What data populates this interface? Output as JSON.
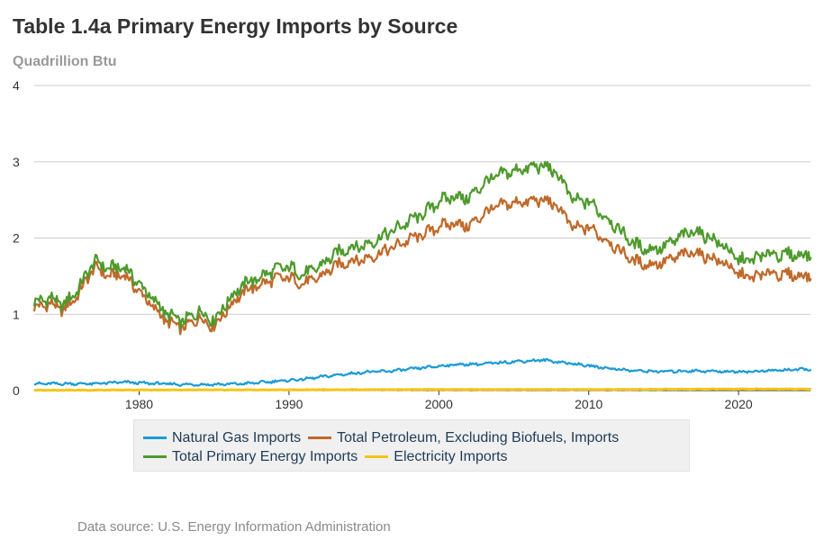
{
  "header": {
    "title": "Table 1.4a Primary Energy Imports by Source",
    "units": "Quadrillion Btu"
  },
  "footer": {
    "source": "Data source: U.S. Energy Information Administration"
  },
  "colors": {
    "natural_gas": "#1a9bd6",
    "petroleum": "#c0692a",
    "total": "#4e9a2c",
    "electricity": "#f5c518",
    "grid": "#cccccc",
    "axis": "#333333"
  },
  "chart_data": {
    "type": "line",
    "title": "Table 1.4a Primary Energy Imports by Source",
    "ylabel": "Quadrillion Btu",
    "xlabel": "",
    "xlim": [
      1973.0,
      2024.8
    ],
    "ylim": [
      0,
      4
    ],
    "x_ticks": [
      1980,
      1990,
      2000,
      2010,
      2020
    ],
    "x_tick_labels": [
      "1980",
      "1990",
      "2000",
      "2010",
      "2020"
    ],
    "y_ticks": [
      0,
      1,
      2,
      3,
      4
    ],
    "y_tick_labels": [
      "0",
      "1",
      "2",
      "3",
      "4"
    ],
    "grid": "horizontal",
    "legend_position": "bottom",
    "frequency": "monthly (values listed are approximate key points of the monthly series)",
    "series": [
      {
        "name": "Total Primary Energy Imports",
        "color": "#4e9a2c",
        "x": [
          1973.0,
          1974.0,
          1975.0,
          1976.0,
          1977.0,
          1978.0,
          1979.0,
          1980.0,
          1981.0,
          1982.0,
          1983.0,
          1984.0,
          1985.0,
          1986.0,
          1987.0,
          1988.0,
          1989.0,
          1990.0,
          1991.0,
          1992.0,
          1993.0,
          1994.0,
          1995.0,
          1996.0,
          1997.0,
          1998.0,
          1999.0,
          2000.0,
          2001.0,
          2002.0,
          2003.0,
          2004.0,
          2005.0,
          2006.0,
          2007.0,
          2008.0,
          2009.0,
          2010.0,
          2011.0,
          2012.0,
          2013.0,
          2014.0,
          2015.0,
          2016.0,
          2017.0,
          2018.0,
          2019.0,
          2020.0,
          2021.0,
          2022.0,
          2023.0,
          2024.8
        ],
        "values": [
          1.15,
          1.22,
          1.12,
          1.35,
          1.7,
          1.6,
          1.62,
          1.4,
          1.18,
          0.98,
          0.9,
          1.05,
          0.92,
          1.2,
          1.4,
          1.48,
          1.58,
          1.62,
          1.52,
          1.62,
          1.78,
          1.88,
          1.9,
          2.0,
          2.1,
          2.22,
          2.32,
          2.48,
          2.55,
          2.52,
          2.72,
          2.82,
          2.88,
          2.92,
          2.95,
          2.82,
          2.48,
          2.48,
          2.3,
          2.12,
          1.92,
          1.85,
          1.88,
          2.0,
          2.1,
          2.02,
          1.9,
          1.7,
          1.72,
          1.8,
          1.78,
          1.78
        ]
      },
      {
        "name": "Total Petroleum, Excluding Biofuels, Imports",
        "color": "#c0692a",
        "x": [
          1973.0,
          1974.0,
          1975.0,
          1976.0,
          1977.0,
          1978.0,
          1979.0,
          1980.0,
          1981.0,
          1982.0,
          1983.0,
          1984.0,
          1985.0,
          1986.0,
          1987.0,
          1988.0,
          1989.0,
          1990.0,
          1991.0,
          1992.0,
          1993.0,
          1994.0,
          1995.0,
          1996.0,
          1997.0,
          1998.0,
          1999.0,
          2000.0,
          2001.0,
          2002.0,
          2003.0,
          2004.0,
          2005.0,
          2006.0,
          2007.0,
          2008.0,
          2009.0,
          2010.0,
          2011.0,
          2012.0,
          2013.0,
          2014.0,
          2015.0,
          2016.0,
          2017.0,
          2018.0,
          2019.0,
          2020.0,
          2021.0,
          2022.0,
          2023.0,
          2024.8
        ],
        "values": [
          1.08,
          1.14,
          1.05,
          1.28,
          1.62,
          1.5,
          1.52,
          1.3,
          1.08,
          0.88,
          0.82,
          0.96,
          0.84,
          1.1,
          1.3,
          1.38,
          1.46,
          1.48,
          1.4,
          1.48,
          1.62,
          1.7,
          1.72,
          1.8,
          1.88,
          1.98,
          2.05,
          2.15,
          2.2,
          2.15,
          2.32,
          2.42,
          2.46,
          2.48,
          2.5,
          2.4,
          2.12,
          2.14,
          2.0,
          1.85,
          1.7,
          1.65,
          1.68,
          1.76,
          1.82,
          1.75,
          1.68,
          1.52,
          1.48,
          1.55,
          1.52,
          1.5
        ]
      },
      {
        "name": "Natural Gas Imports",
        "color": "#1a9bd6",
        "x": [
          1973.0,
          1975.0,
          1977.0,
          1979.0,
          1980.0,
          1983.0,
          1985.0,
          1987.0,
          1989.0,
          1991.0,
          1993.0,
          1995.0,
          1997.0,
          1999.0,
          2001.0,
          2003.0,
          2005.0,
          2007.0,
          2009.0,
          2011.0,
          2013.0,
          2015.0,
          2017.0,
          2019.0,
          2021.0,
          2023.0,
          2024.8
        ],
        "values": [
          0.09,
          0.09,
          0.09,
          0.11,
          0.1,
          0.08,
          0.08,
          0.09,
          0.12,
          0.15,
          0.2,
          0.24,
          0.26,
          0.3,
          0.34,
          0.35,
          0.38,
          0.4,
          0.35,
          0.3,
          0.26,
          0.25,
          0.26,
          0.25,
          0.25,
          0.27,
          0.28
        ]
      },
      {
        "name": "Electricity Imports",
        "color": "#f5c518",
        "x": [
          1973.0,
          1980.0,
          1990.0,
          2000.0,
          2010.0,
          2020.0,
          2024.8
        ],
        "values": [
          0.005,
          0.008,
          0.01,
          0.015,
          0.015,
          0.02,
          0.02
        ]
      }
    ]
  },
  "legend": {
    "items": [
      {
        "label": "Natural Gas Imports",
        "color": "#1a9bd6"
      },
      {
        "label": "Total Petroleum, Excluding Biofuels, Imports",
        "color": "#c0692a"
      },
      {
        "label": "Total Primary Energy Imports",
        "color": "#4e9a2c"
      },
      {
        "label": "Electricity Imports",
        "color": "#f5c518"
      }
    ]
  }
}
